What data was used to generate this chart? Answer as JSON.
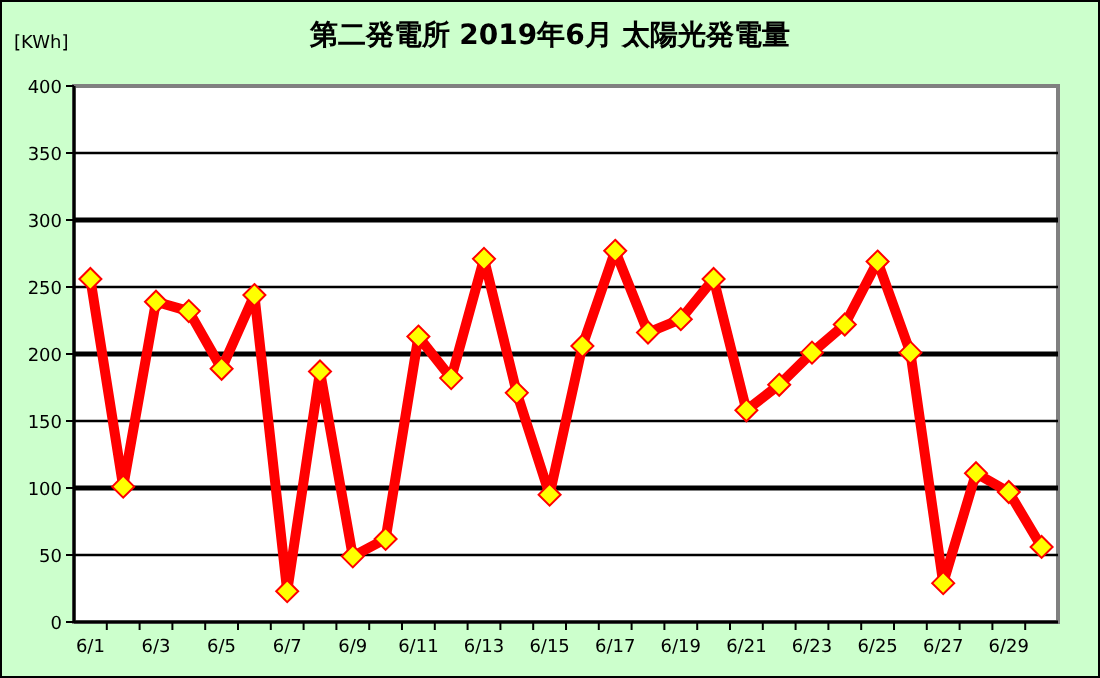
{
  "chart_data": {
    "type": "line",
    "title": "第二発電所  2019年6月 太陽光発電量",
    "ylabel": "[KWh]",
    "categories": [
      "6/1",
      null,
      "6/3",
      null,
      "6/5",
      null,
      "6/7",
      null,
      "6/9",
      null,
      "6/11",
      null,
      "6/13",
      null,
      "6/15",
      null,
      "6/17",
      null,
      "6/19",
      null,
      "6/21",
      null,
      "6/23",
      null,
      "6/25",
      null,
      "6/27",
      null,
      "6/29",
      null
    ],
    "series": [
      {
        "color": "#ff0000",
        "values": [
          256,
          101,
          239,
          232,
          189,
          244,
          23,
          187,
          49,
          62,
          213,
          182,
          271,
          171,
          95,
          206,
          277,
          216,
          226,
          256,
          158,
          177,
          201,
          222,
          269,
          201,
          29,
          111,
          97,
          56
        ]
      }
    ],
    "ylim": [
      0,
      400
    ],
    "yticks": [
      0,
      50,
      100,
      150,
      200,
      250,
      300,
      350,
      400
    ],
    "grid": "y",
    "marker": "diamond",
    "line_style": "solid"
  }
}
